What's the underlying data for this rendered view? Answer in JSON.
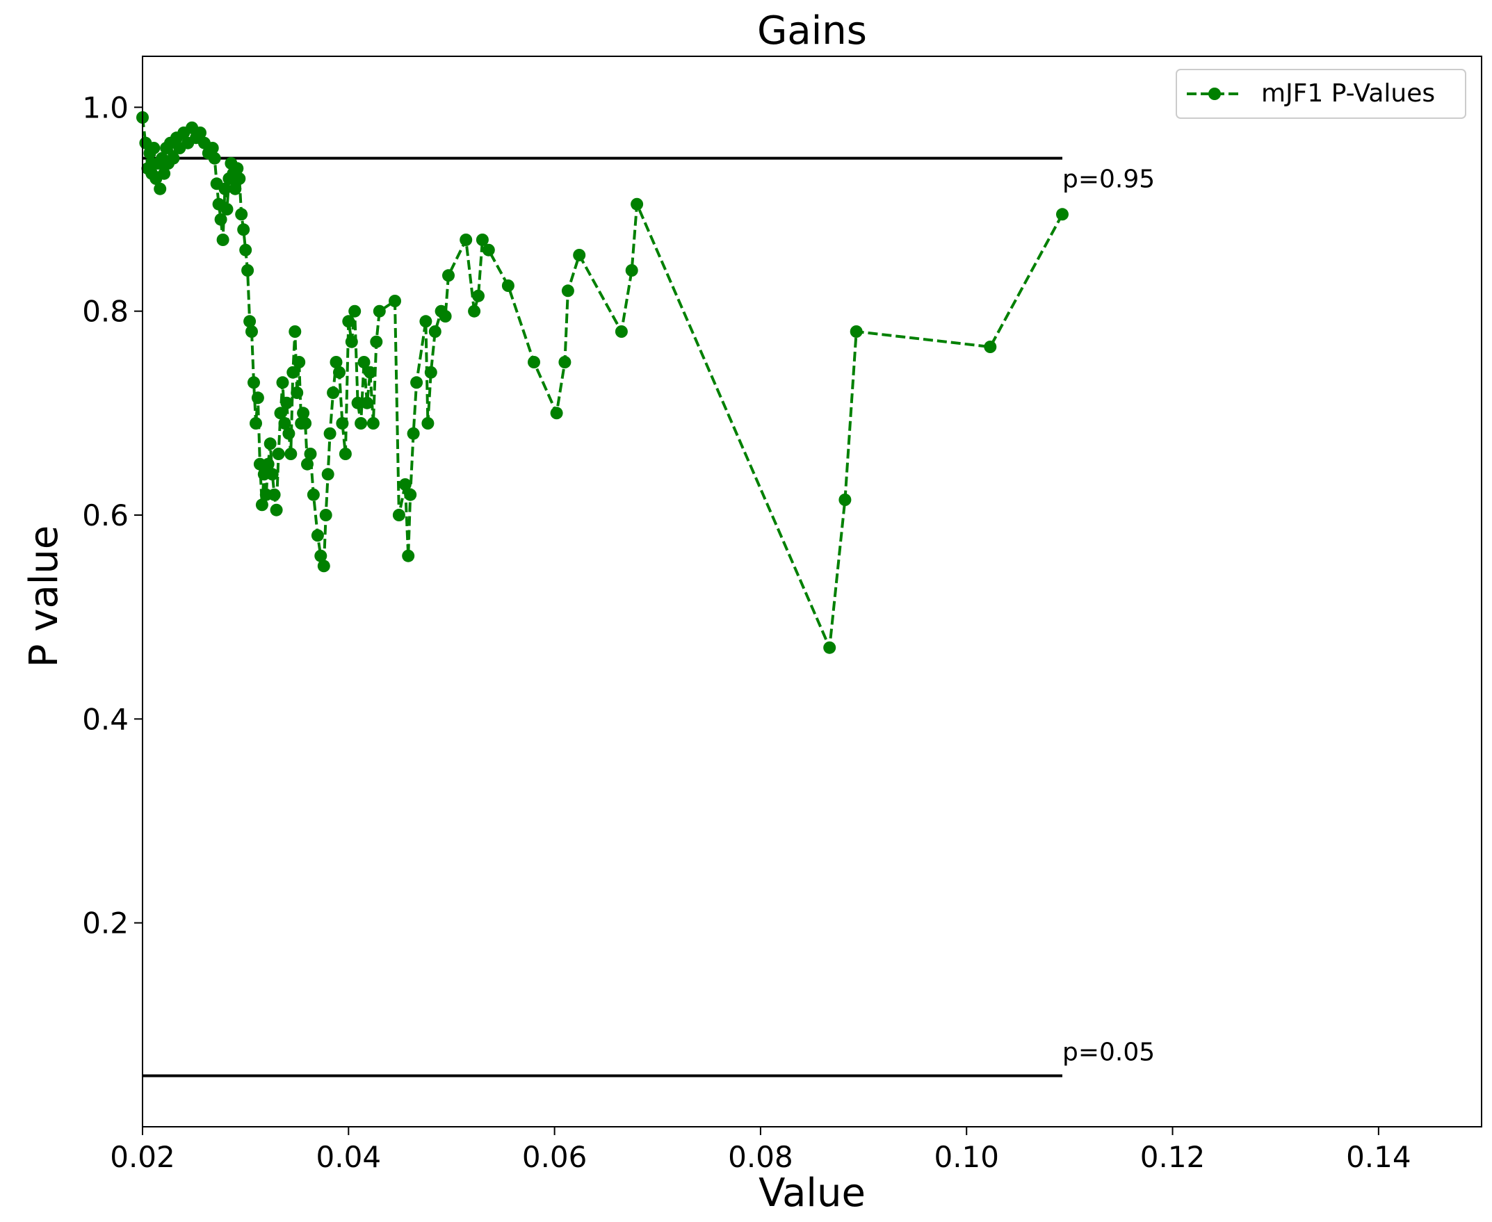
{
  "chart_data": {
    "type": "line",
    "title": "Gains",
    "xlabel": "Value",
    "ylabel": "P value",
    "xlim": [
      0.02,
      0.15
    ],
    "ylim": [
      0.0,
      1.05
    ],
    "xticks": [
      0.02,
      0.04,
      0.06,
      0.08,
      0.1,
      0.12,
      0.14
    ],
    "xtick_labels": [
      "0.02",
      "0.04",
      "0.06",
      "0.08",
      "0.10",
      "0.12",
      "0.14"
    ],
    "yticks": [
      0.2,
      0.4,
      0.6,
      0.8,
      1.0
    ],
    "ytick_labels": [
      "0.2",
      "0.4",
      "0.6",
      "0.8",
      "1.0"
    ],
    "grid": false,
    "legend": {
      "position": "top-right",
      "entries": [
        "mJF1 P-Values"
      ]
    },
    "reference_lines": [
      {
        "y": 0.95,
        "x_start": 0.02,
        "x_end": 0.1093,
        "label": "p=0.95"
      },
      {
        "y": 0.05,
        "x_start": 0.02,
        "x_end": 0.1093,
        "label": "p=0.05"
      }
    ],
    "series": [
      {
        "name": "mJF1 P-Values",
        "color": "#008000",
        "style": "dashed",
        "marker": "circle",
        "x": [
          0.02,
          0.0203,
          0.0205,
          0.0207,
          0.0209,
          0.0211,
          0.0213,
          0.0215,
          0.0217,
          0.0219,
          0.0221,
          0.0223,
          0.0225,
          0.0227,
          0.023,
          0.0233,
          0.0236,
          0.024,
          0.0244,
          0.0248,
          0.0252,
          0.0256,
          0.026,
          0.0264,
          0.0268,
          0.027,
          0.0272,
          0.0274,
          0.0276,
          0.0278,
          0.028,
          0.0282,
          0.0284,
          0.0286,
          0.0288,
          0.029,
          0.0292,
          0.0294,
          0.0296,
          0.0298,
          0.03,
          0.0302,
          0.0304,
          0.0306,
          0.0308,
          0.031,
          0.0312,
          0.0314,
          0.0316,
          0.0318,
          0.032,
          0.0322,
          0.0324,
          0.0326,
          0.0328,
          0.033,
          0.0332,
          0.0334,
          0.0336,
          0.0338,
          0.034,
          0.0342,
          0.0344,
          0.0346,
          0.0348,
          0.035,
          0.0352,
          0.0354,
          0.0356,
          0.0358,
          0.036,
          0.0363,
          0.0366,
          0.037,
          0.0373,
          0.0376,
          0.0378,
          0.038,
          0.0382,
          0.0385,
          0.0388,
          0.0391,
          0.0394,
          0.0397,
          0.04,
          0.0403,
          0.0406,
          0.0409,
          0.0412,
          0.0415,
          0.0418,
          0.0421,
          0.0424,
          0.0427,
          0.043,
          0.0445,
          0.0449,
          0.0455,
          0.0458,
          0.046,
          0.0463,
          0.0466,
          0.0475,
          0.0477,
          0.048,
          0.0484,
          0.049,
          0.0494,
          0.0497,
          0.0514,
          0.0522,
          0.0526,
          0.053,
          0.0536,
          0.0555,
          0.058,
          0.0602,
          0.061,
          0.0613,
          0.0624,
          0.0665,
          0.0675,
          0.068,
          0.0867,
          0.0882,
          0.0893,
          0.1023,
          0.1093
        ],
        "y": [
          0.99,
          0.965,
          0.94,
          0.955,
          0.935,
          0.96,
          0.93,
          0.945,
          0.92,
          0.95,
          0.935,
          0.96,
          0.945,
          0.965,
          0.95,
          0.97,
          0.96,
          0.975,
          0.965,
          0.98,
          0.97,
          0.975,
          0.965,
          0.955,
          0.96,
          0.95,
          0.925,
          0.905,
          0.89,
          0.87,
          0.92,
          0.9,
          0.93,
          0.945,
          0.935,
          0.92,
          0.94,
          0.93,
          0.895,
          0.88,
          0.86,
          0.84,
          0.79,
          0.78,
          0.73,
          0.69,
          0.715,
          0.65,
          0.61,
          0.64,
          0.62,
          0.65,
          0.67,
          0.64,
          0.62,
          0.605,
          0.66,
          0.7,
          0.73,
          0.69,
          0.71,
          0.68,
          0.66,
          0.74,
          0.78,
          0.72,
          0.75,
          0.69,
          0.7,
          0.69,
          0.65,
          0.66,
          0.62,
          0.58,
          0.56,
          0.55,
          0.6,
          0.64,
          0.68,
          0.72,
          0.75,
          0.74,
          0.69,
          0.66,
          0.79,
          0.77,
          0.8,
          0.71,
          0.69,
          0.75,
          0.71,
          0.74,
          0.69,
          0.77,
          0.8,
          0.81,
          0.6,
          0.63,
          0.56,
          0.62,
          0.68,
          0.73,
          0.79,
          0.69,
          0.74,
          0.78,
          0.8,
          0.795,
          0.835,
          0.87,
          0.8,
          0.815,
          0.87,
          0.86,
          0.825,
          0.75,
          0.7,
          0.75,
          0.82,
          0.855,
          0.78,
          0.84,
          0.905,
          0.47,
          0.615,
          0.78,
          0.765,
          0.895
        ]
      }
    ]
  }
}
